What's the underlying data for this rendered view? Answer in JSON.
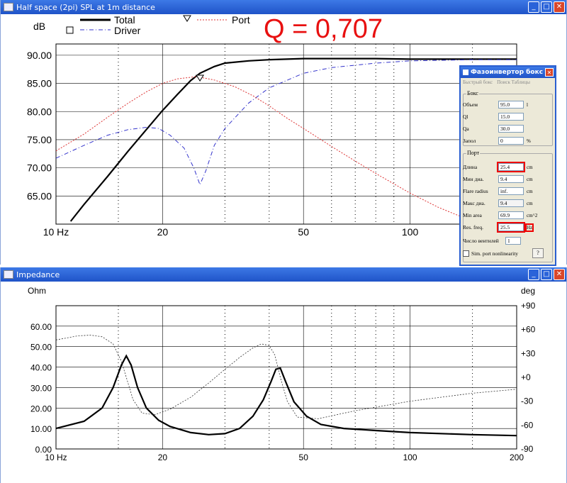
{
  "spl_window": {
    "title": "Half space (2pi) SPL at 1m distance",
    "y_unit": "dB",
    "legend": [
      {
        "name": "Total",
        "color": "#000000"
      },
      {
        "name": "Driver",
        "color": "#3333cc"
      },
      {
        "name": "Port",
        "color": "#dd3333"
      }
    ],
    "annotation": "Q = 0,707"
  },
  "impedance_window": {
    "title": "Impedance",
    "y_left_unit": "Ohm",
    "y_right_unit": "deg"
  },
  "dialog": {
    "title": "Фазоинвертор бокс",
    "menu": [
      "Быстрый бокс",
      "Поиск Таблицы"
    ],
    "box_group": "Бокс",
    "box_rows": [
      {
        "label": "Объем",
        "value": "95.0",
        "unit": "l"
      },
      {
        "label": "Ql",
        "value": "15.0",
        "unit": ""
      },
      {
        "label": "Qa",
        "value": "30.0",
        "unit": ""
      },
      {
        "label": "Запол",
        "value": "0",
        "unit": "%"
      }
    ],
    "port_group": "Порт",
    "port_rows": [
      {
        "label": "Длина",
        "value": "25.4",
        "unit": "cm",
        "highlight": true
      },
      {
        "label": "Мин диа.",
        "value": "9.4",
        "unit": "cm",
        "highlight": false
      },
      {
        "label": "Flare radius",
        "value": "inf.",
        "unit": "cm",
        "highlight": false
      },
      {
        "label": "Макс диа.",
        "value": "9.4",
        "unit": "cm",
        "highlight": false
      },
      {
        "label": "Min area",
        "value": "69.9",
        "unit": "cm^2",
        "highlight": false
      },
      {
        "label": "Res. freq.",
        "value": "25.5",
        "unit": "Hz",
        "highlight": true
      }
    ],
    "vents_label": "Число вентилей",
    "vents_value": "1",
    "nonlin_label": "Sim. port nonlinearity",
    "help_label": "?"
  },
  "chart_data": [
    {
      "type": "line",
      "title": "Half space (2pi) SPL at 1m distance",
      "ylabel": "dB",
      "xscale": "log",
      "xlim": [
        10,
        200
      ],
      "ylim": [
        60,
        92
      ],
      "y_ticks": [
        "90.00",
        "85.00",
        "80.00",
        "75.00",
        "70.00",
        "65.00"
      ],
      "x_ticks": [
        "10 Hz",
        "20",
        "50",
        "100"
      ],
      "series": [
        {
          "name": "Total",
          "color": "#000000",
          "x": [
            11,
            12,
            14,
            16,
            18,
            20,
            22,
            24,
            25.5,
            28,
            30,
            35,
            40,
            50,
            60,
            80,
            100,
            150,
            200
          ],
          "y": [
            60.5,
            63.5,
            68.5,
            73,
            76.8,
            80.2,
            83,
            85.5,
            86.8,
            88,
            88.6,
            89,
            89.2,
            89.4,
            89.4,
            89.4,
            89.3,
            89.3,
            89.3
          ]
        },
        {
          "name": "Driver",
          "color": "#3333cc",
          "x": [
            10,
            12,
            14,
            16,
            18,
            19.5,
            21,
            23,
            24.5,
            25.5,
            26.5,
            28,
            30,
            35,
            40,
            50,
            60,
            80,
            100,
            150,
            200
          ],
          "y": [
            71.7,
            74,
            75.8,
            76.8,
            77.2,
            77,
            75.8,
            73.5,
            70,
            67,
            69.5,
            74,
            77,
            81.5,
            84.2,
            86.8,
            87.8,
            88.6,
            89,
            89.2,
            89.2
          ]
        },
        {
          "name": "Port",
          "color": "#dd3333",
          "x": [
            10,
            12,
            14,
            16,
            18,
            20,
            22,
            25,
            28,
            32,
            36,
            40,
            45,
            50,
            60,
            70,
            80,
            100,
            120,
            150,
            200
          ],
          "y": [
            73,
            76,
            79,
            81.5,
            83.5,
            85,
            85.8,
            86.2,
            85.6,
            84.4,
            82.8,
            81,
            78.8,
            77,
            73.8,
            71.2,
            69,
            65.5,
            63,
            60.5,
            58
          ]
        }
      ],
      "markers": [
        {
          "series": "Port",
          "x": 25.5,
          "y": 86.2
        }
      ]
    },
    {
      "type": "line",
      "title": "Impedance",
      "ylabel": "Ohm",
      "ylabel_right": "deg",
      "xscale": "log",
      "xlim": [
        10,
        200
      ],
      "ylim": [
        0,
        70
      ],
      "ylim_right": [
        -90,
        90
      ],
      "y_ticks": [
        "60.00",
        "50.00",
        "40.00",
        "30.00",
        "20.00",
        "10.00",
        "0.00"
      ],
      "y_ticks_right": [
        "+90",
        "+60",
        "+30",
        "+0",
        "-30",
        "-60",
        "-90"
      ],
      "x_ticks": [
        "10 Hz",
        "20",
        "50",
        "100",
        "200"
      ],
      "series": [
        {
          "name": "Impedance magnitude",
          "color": "#000000",
          "x": [
            10,
            12,
            13.5,
            14.5,
            15.3,
            15.8,
            16.3,
            17,
            18,
            19.5,
            21,
            24,
            27,
            30,
            33,
            36,
            38.5,
            40.5,
            41.8,
            43,
            44.5,
            47,
            51,
            56,
            65,
            80,
            100,
            150,
            200
          ],
          "y": [
            10,
            13.5,
            20,
            30,
            41,
            45.5,
            41,
            30,
            20,
            14,
            11,
            8,
            7,
            7.5,
            10,
            16,
            24,
            33,
            39,
            39.5,
            33,
            23,
            16,
            12,
            10,
            9,
            8,
            7,
            6.5
          ]
        },
        {
          "name": "Impedance phase",
          "color": "#333333",
          "x": [
            10,
            11.5,
            12.5,
            13.5,
            14.5,
            15.3,
            15.8,
            16.5,
            17.5,
            19,
            21,
            24,
            27,
            30,
            33,
            36,
            38,
            40,
            41.5,
            43,
            45,
            48,
            55,
            70,
            100,
            150,
            200
          ],
          "y": [
            47,
            52,
            53,
            51,
            42,
            20,
            0,
            -28,
            -45,
            -47,
            -40,
            -25,
            -7,
            10,
            25,
            37,
            42,
            40,
            28,
            0,
            -30,
            -50,
            -52,
            -42,
            -30,
            -20,
            -15
          ]
        }
      ]
    }
  ]
}
